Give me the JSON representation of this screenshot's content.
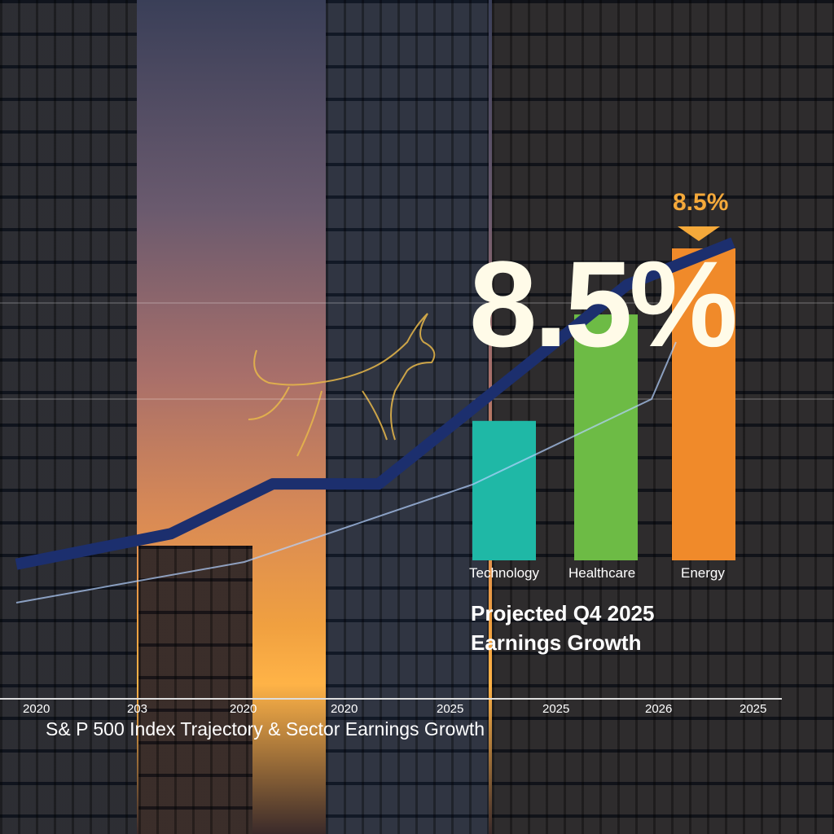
{
  "chart_data": [
    {
      "type": "line",
      "title": "S& P 500 Index Trajectory & Sector Earnings Growth",
      "x_tick_labels": [
        "2020",
        "203",
        "2020",
        "2020",
        "2025",
        "2025",
        "2026",
        "2025"
      ],
      "series": [
        {
          "values": [
            0.16,
            0.24,
            0.37,
            0.37,
            0.89,
            1.0
          ]
        }
      ],
      "color": "#1c2f6e",
      "grid": false
    },
    {
      "type": "bar",
      "categories": [
        "Technology",
        "Healthcare",
        "Energy"
      ],
      "values": [
        3.8,
        6.7,
        8.5
      ],
      "unit": "%",
      "colors": [
        "#1fb8a6",
        "#6dbb45",
        "#f08a2a"
      ],
      "annotation": "8.5%",
      "headline": "8.5%",
      "subtitle_line1": "Projected Q4 2025",
      "subtitle_line2": "Earnings Growth"
    }
  ]
}
